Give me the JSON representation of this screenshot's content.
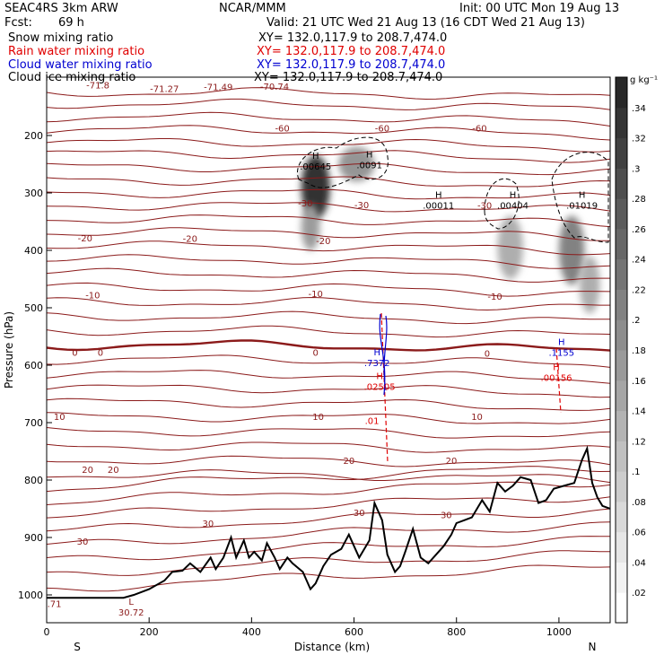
{
  "header": {
    "model": "SEAC4RS  3km ARW",
    "org": "NCAR/MMM",
    "init": "Init: 00 UTC Mon 19 Aug 13",
    "fcst_label": "Fcst:",
    "fcst_value": "69 h",
    "valid": "Valid: 21 UTC Wed 21 Aug 13 (16 CDT Wed 21 Aug 13)",
    "fields": [
      {
        "name": "Snow mixing ratio",
        "xy": "XY= 132.0,117.9 to 208.7,474.0",
        "color": "#000000"
      },
      {
        "name": "Rain water mixing ratio",
        "xy": "XY= 132.0,117.9 to 208.7,474.0",
        "color": "#e00000"
      },
      {
        "name": "Cloud water mixing ratio",
        "xy": "XY= 132.0,117.9 to 208.7,474.0",
        "color": "#0000d0"
      },
      {
        "name": "Cloud ice mixing ratio",
        "xy": "XY= 132.0,117.9 to 208.7,474.0",
        "color": "#000000"
      }
    ]
  },
  "chart_data": {
    "type": "heatmap",
    "title": "",
    "xlabel": "Distance (km)",
    "ylabel": "Pressure (hPa)",
    "xlim": [
      0,
      1100
    ],
    "ylim": [
      1050,
      100
    ],
    "x_ticks": [
      0,
      200,
      400,
      600,
      800,
      1000
    ],
    "y_ticks": [
      200,
      300,
      400,
      500,
      600,
      700,
      800,
      900,
      1000
    ],
    "x_end_labels": {
      "left": "S",
      "right": "N"
    },
    "colorbar": {
      "unit": "g kg⁻¹",
      "ticks": [
        ".02",
        ".04",
        ".06",
        ".08",
        ".1",
        ".12",
        ".14",
        ".16",
        ".18",
        ".2",
        ".22",
        ".24",
        ".26",
        ".28",
        ".3",
        ".32",
        ".34"
      ],
      "max": 0.36
    },
    "temperature_contours": {
      "color": "#8b1a1a",
      "labels": [
        {
          "text": "-71.8",
          "x": 100,
          "p": 112
        },
        {
          "text": "-71.27",
          "x": 230,
          "p": 118
        },
        {
          "text": "-71.49",
          "x": 335,
          "p": 115
        },
        {
          "text": "-70.74",
          "x": 445,
          "p": 114
        },
        {
          "text": "-60",
          "x": 460,
          "p": 187
        },
        {
          "text": "-60",
          "x": 655,
          "p": 187
        },
        {
          "text": "-60",
          "x": 845,
          "p": 187
        },
        {
          "text": "-30",
          "x": 505,
          "p": 317
        },
        {
          "text": "-30",
          "x": 615,
          "p": 320
        },
        {
          "text": "-30",
          "x": 855,
          "p": 321
        },
        {
          "text": "-20",
          "x": 75,
          "p": 378
        },
        {
          "text": "-20",
          "x": 280,
          "p": 379
        },
        {
          "text": "-20",
          "x": 540,
          "p": 383
        },
        {
          "text": "-10",
          "x": 90,
          "p": 477
        },
        {
          "text": "-10",
          "x": 525,
          "p": 475
        },
        {
          "text": "-10",
          "x": 875,
          "p": 480
        },
        {
          "text": "0",
          "x": 55,
          "p": 577
        },
        {
          "text": "0",
          "x": 105,
          "p": 577
        },
        {
          "text": "0",
          "x": 525,
          "p": 577
        },
        {
          "text": "0",
          "x": 860,
          "p": 579
        },
        {
          "text": "10",
          "x": 25,
          "p": 689
        },
        {
          "text": "10",
          "x": 530,
          "p": 689
        },
        {
          "text": "10",
          "x": 840,
          "p": 689
        },
        {
          "text": "20",
          "x": 80,
          "p": 781
        },
        {
          "text": "20",
          "x": 130,
          "p": 781
        },
        {
          "text": "20",
          "x": 590,
          "p": 766
        },
        {
          "text": "20",
          "x": 790,
          "p": 766
        },
        {
          "text": "30",
          "x": 70,
          "p": 906
        },
        {
          "text": "30",
          "x": 315,
          "p": 875
        },
        {
          "text": "30",
          "x": 610,
          "p": 856
        },
        {
          "text": "30",
          "x": 780,
          "p": 860
        }
      ]
    },
    "extrema": [
      {
        "mark": "H",
        "value": ".00645",
        "x": 525,
        "p": 253,
        "color": "#000000"
      },
      {
        "mark": "H",
        "value": ".0091",
        "x": 630,
        "p": 251,
        "color": "#000000"
      },
      {
        "mark": "H",
        "value": ".00011",
        "x": 765,
        "p": 321,
        "color": "#000000"
      },
      {
        "mark": "H",
        "value": ".00404",
        "x": 910,
        "p": 321,
        "color": "#000000"
      },
      {
        "mark": "H",
        "value": ".01019",
        "x": 1045,
        "p": 321,
        "color": "#000000"
      },
      {
        "mark": "H",
        "value": ".7372",
        "x": 645,
        "p": 595,
        "color": "#0000d0"
      },
      {
        "mark": "H",
        "value": ".02505",
        "x": 650,
        "p": 637,
        "color": "#e00000"
      },
      {
        "mark": "H",
        "value": ".1155",
        "x": 1005,
        "p": 577,
        "color": "#0000d0"
      },
      {
        "mark": "H",
        "value": ".00156",
        "x": 995,
        "p": 621,
        "color": "#e00000"
      },
      {
        "mark": "L",
        "value": "30.72",
        "x": 165,
        "p": 1030,
        "color": "#8b1a1a"
      }
    ],
    "other_labels": [
      {
        "text": ".71",
        "x": 15,
        "p": 1015,
        "color": "#8b1a1a"
      },
      {
        "text": ".01",
        "x": 635,
        "p": 696,
        "color": "#e00000"
      }
    ],
    "snow_cells": [
      {
        "x": 525,
        "p": 290,
        "sx": 28,
        "sp": 55,
        "amp": 0.33
      },
      {
        "x": 515,
        "p": 360,
        "sx": 18,
        "sp": 40,
        "amp": 0.16
      },
      {
        "x": 605,
        "p": 250,
        "sx": 35,
        "sp": 30,
        "amp": 0.17
      },
      {
        "x": 905,
        "p": 395,
        "sx": 25,
        "sp": 55,
        "amp": 0.13
      },
      {
        "x": 1025,
        "p": 400,
        "sx": 25,
        "sp": 60,
        "amp": 0.2
      },
      {
        "x": 1060,
        "p": 460,
        "sx": 20,
        "sp": 50,
        "amp": 0.13
      }
    ],
    "terrain": {
      "x": [
        0,
        150,
        170,
        200,
        230,
        245,
        265,
        280,
        300,
        320,
        330,
        345,
        360,
        370,
        385,
        395,
        405,
        420,
        430,
        445,
        455,
        470,
        480,
        500,
        515,
        525,
        540,
        555,
        575,
        590,
        610,
        630,
        640,
        655,
        665,
        680,
        690,
        700,
        715,
        730,
        745,
        760,
        775,
        790,
        800,
        815,
        830,
        850,
        865,
        880,
        895,
        910,
        925,
        945,
        960,
        975,
        990,
        1010,
        1030,
        1045,
        1055,
        1065,
        1075,
        1085,
        1100
      ],
      "p": [
        1005,
        1005,
        1000,
        990,
        975,
        960,
        958,
        945,
        960,
        935,
        955,
        935,
        900,
        935,
        905,
        935,
        925,
        940,
        910,
        935,
        955,
        935,
        945,
        960,
        990,
        980,
        950,
        930,
        920,
        895,
        935,
        905,
        840,
        870,
        930,
        960,
        950,
        925,
        885,
        935,
        945,
        930,
        915,
        895,
        875,
        870,
        865,
        835,
        855,
        805,
        820,
        810,
        795,
        800,
        840,
        835,
        815,
        810,
        805,
        765,
        745,
        805,
        830,
        845,
        850
      ]
    }
  }
}
